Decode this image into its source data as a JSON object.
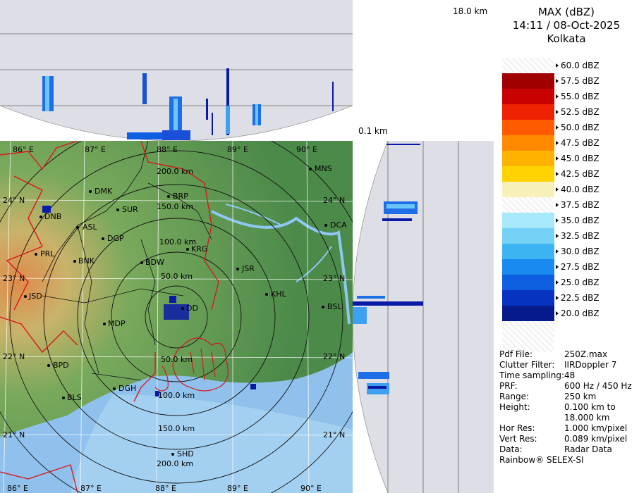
{
  "side_view": {
    "top_height_label": "18.0 km",
    "bottom_height_label": "0.1 km"
  },
  "legend": {
    "title_line1": "MAX (dBZ)",
    "title_line2": "14:11 / 08-Oct-2025",
    "title_line3": "Kolkata",
    "scale": [
      {
        "label": "60.0 dBZ",
        "color": ""
      },
      {
        "label": "57.5 dBZ",
        "color": "#a10000"
      },
      {
        "label": "55.0 dBZ",
        "color": "#c80000"
      },
      {
        "label": "52.5 dBZ",
        "color": "#ee2200"
      },
      {
        "label": "50.0 dBZ",
        "color": "#ff5a00"
      },
      {
        "label": "47.5 dBZ",
        "color": "#ff8a00"
      },
      {
        "label": "45.0 dBZ",
        "color": "#ffb300"
      },
      {
        "label": "42.5 dBZ",
        "color": "#ffd200"
      },
      {
        "label": "40.0 dBZ",
        "color": "#f7f0b8"
      },
      {
        "label": "37.5 dBZ",
        "color": ""
      },
      {
        "label": "35.0 dBZ",
        "color": "#a8e8fb"
      },
      {
        "label": "32.5 dBZ",
        "color": "#75d2f6"
      },
      {
        "label": "30.0 dBZ",
        "color": "#3db4f2"
      },
      {
        "label": "27.5 dBZ",
        "color": "#1a8af0"
      },
      {
        "label": "25.0 dBZ",
        "color": "#0d5ee0"
      },
      {
        "label": "22.5 dBZ",
        "color": "#0733c2"
      },
      {
        "label": "20.0 dBZ",
        "color": "#071a8c"
      }
    ]
  },
  "info": [
    {
      "key": "Pdf File:",
      "value": "250Z.max"
    },
    {
      "key": "Clutter Filter:",
      "value": "IIRDoppler 7"
    },
    {
      "key": "Time sampling:",
      "value": "48"
    },
    {
      "key": "PRF:",
      "value": "600 Hz / 450 Hz"
    },
    {
      "key": "Range:",
      "value": "250 km"
    },
    {
      "key": "Height:",
      "value": "0.100 km to"
    },
    {
      "key": "",
      "value": "18.000 km"
    },
    {
      "key": "Hor Res:",
      "value": "1.000 km/pixel"
    },
    {
      "key": "Vert Res:",
      "value": "0.089 km/pixel"
    },
    {
      "key": "Data:",
      "value": "Radar Data"
    }
  ],
  "footer": "Rainbow® SELEX-SI",
  "map": {
    "longitudes": [
      "86° E",
      "87° E",
      "88° E",
      "89° E",
      "90° E"
    ],
    "latitudes": [
      "24° N",
      "23° N",
      "22° N",
      "21° N"
    ],
    "range_rings": [
      "50.0 km",
      "100.0 km",
      "150.0 km",
      "200.0 km"
    ],
    "stations": [
      "MNS",
      "DMK",
      "BRP",
      "DNB",
      "SUR",
      "ASL",
      "DGP",
      "KRG",
      "DCA",
      "PRL",
      "BNK",
      "BDW",
      "JSR",
      "KHL",
      "JSD",
      "DD",
      "BSL",
      "MDP",
      "BPD",
      "DGH",
      "BLS",
      "SHD"
    ],
    "colors": {
      "land": "#5f9a52",
      "sea": "#8fc1ec",
      "rivers": "#8ec8f2",
      "boundary": "#d8191c",
      "echo": "#0a1aa8"
    }
  }
}
